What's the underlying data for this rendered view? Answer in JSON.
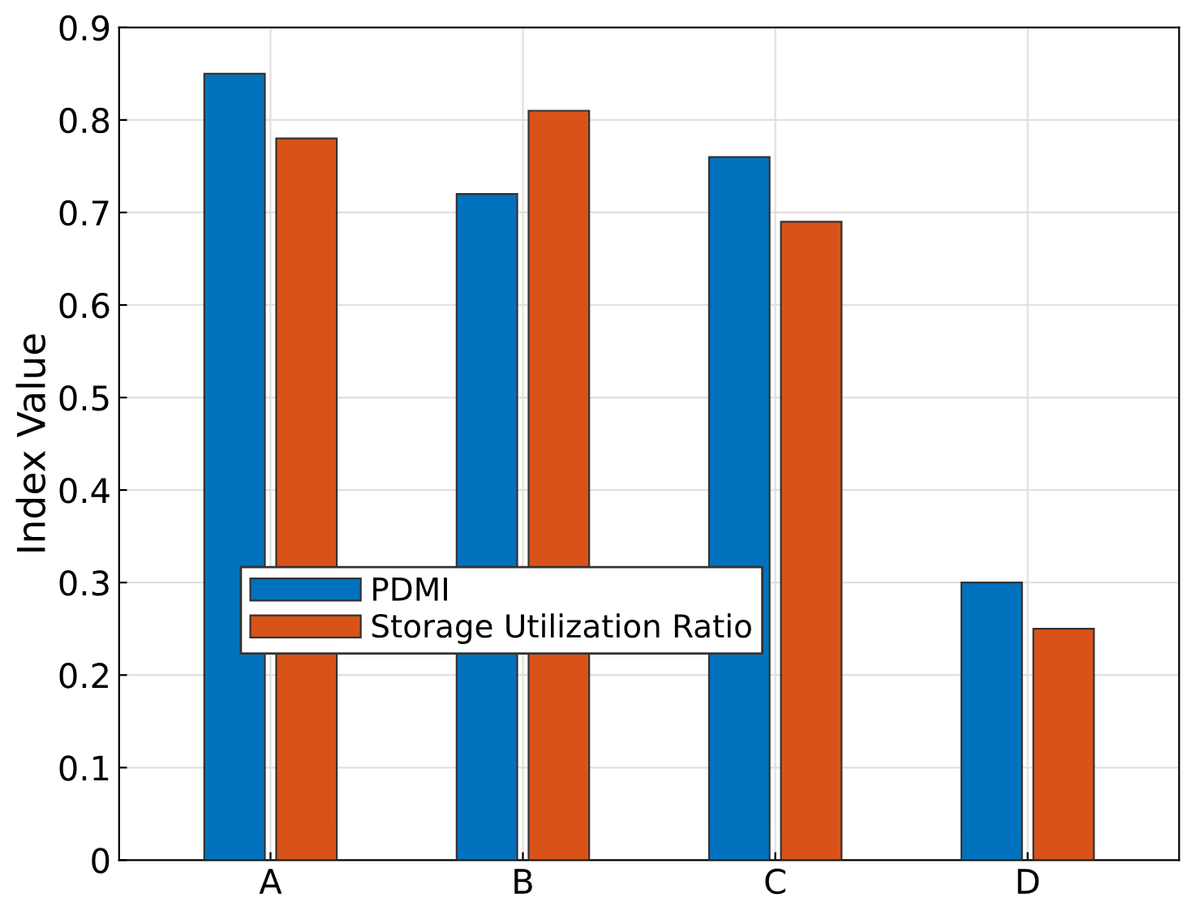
{
  "chart_data": {
    "type": "bar",
    "ylabel": "Index Value",
    "categories": [
      "A",
      "B",
      "C",
      "D"
    ],
    "series": [
      {
        "name": "PDMI",
        "color": "#0072bd",
        "values": [
          0.85,
          0.72,
          0.76,
          0.3
        ]
      },
      {
        "name": "Storage Utilization Ratio",
        "color": "#d95319",
        "values": [
          0.78,
          0.81,
          0.69,
          0.25
        ]
      }
    ],
    "ylim": [
      0,
      0.9
    ],
    "yticks": [
      0,
      0.1,
      0.2,
      0.3,
      0.4,
      0.5,
      0.6,
      0.7,
      0.8,
      0.9
    ],
    "grid": true,
    "legend": "center left"
  }
}
